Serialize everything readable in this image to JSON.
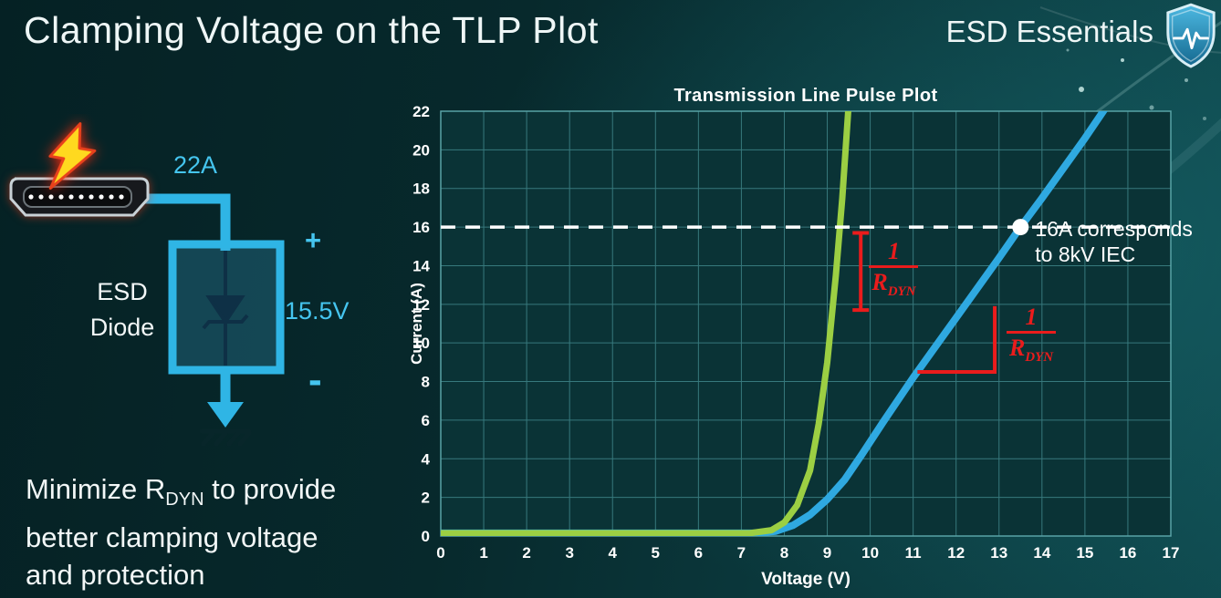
{
  "slide": {
    "title": "Clamping Voltage on the TLP Plot",
    "brand": "ESD Essentials"
  },
  "diagram": {
    "surge_current": "22A",
    "device_line1": "ESD",
    "device_line2": "Diode",
    "plus": "+",
    "clamp_voltage": "15.5V",
    "minus": "-"
  },
  "caption": {
    "pre": "Minimize R",
    "sub": "DYN",
    "post": " to provide",
    "line2": "better clamping voltage",
    "line3": "and protection"
  },
  "chart_data": {
    "type": "line",
    "title": "Transmission Line Pulse Plot",
    "xlabel": "Voltage (V)",
    "ylabel": "Current (A)",
    "xlim": [
      0,
      17
    ],
    "ylim": [
      0,
      22
    ],
    "x_ticks": [
      0,
      1,
      2,
      3,
      4,
      5,
      6,
      7,
      8,
      9,
      10,
      11,
      12,
      13,
      14,
      15,
      16,
      17
    ],
    "y_ticks": [
      0,
      2,
      4,
      6,
      8,
      10,
      12,
      14,
      16,
      18,
      20,
      22
    ],
    "grid": true,
    "legend": "none",
    "colors": {
      "plot_bg": "#0a3336",
      "grid": "#37797d",
      "frame": "#58a3a6"
    },
    "series": [
      {
        "color": "#2fa9e1",
        "width": 8,
        "points": [
          [
            0,
            0.15
          ],
          [
            7.3,
            0.15
          ],
          [
            7.8,
            0.25
          ],
          [
            8.2,
            0.55
          ],
          [
            8.6,
            1.1
          ],
          [
            9.0,
            1.9
          ],
          [
            9.4,
            2.9
          ],
          [
            9.8,
            4.2
          ],
          [
            10.3,
            5.9
          ],
          [
            11,
            8.2
          ],
          [
            12,
            11.3
          ],
          [
            13,
            14.4
          ],
          [
            13.5,
            16
          ],
          [
            14,
            17.5
          ],
          [
            15,
            20.6
          ],
          [
            15.55,
            22.4
          ]
        ]
      },
      {
        "color": "#9ccf43",
        "width": 7,
        "points": [
          [
            0,
            0.15
          ],
          [
            7.2,
            0.15
          ],
          [
            7.7,
            0.3
          ],
          [
            8.0,
            0.7
          ],
          [
            8.3,
            1.6
          ],
          [
            8.6,
            3.4
          ],
          [
            8.8,
            5.8
          ],
          [
            9.0,
            9.0
          ],
          [
            9.2,
            13.5
          ],
          [
            9.35,
            17.5
          ],
          [
            9.5,
            22.4
          ]
        ]
      }
    ],
    "reference_line": {
      "y": 16,
      "style": "dashed",
      "color": "#ffffff"
    },
    "marker": {
      "x": 13.5,
      "y": 16,
      "label_line1": "16A corresponds",
      "label_line2": "to 8kV IEC"
    },
    "slope_annotation": {
      "numerator": "1",
      "denominator_base": "R",
      "denominator_sub": "DYN",
      "color": "#ea1c1c"
    },
    "rdyn_labels": [
      {
        "x": 10.55,
        "y": 13.7
      },
      {
        "x": 13.75,
        "y": 10.3
      }
    ],
    "slope_markers": [
      {
        "shape": "ibeam",
        "x": 9.78,
        "y_from": 11.7,
        "y_to": 15.7
      },
      {
        "shape": "angle",
        "x_from": 11.1,
        "x_to": 12.9,
        "y": 8.5,
        "y_to": 11.9
      }
    ]
  }
}
